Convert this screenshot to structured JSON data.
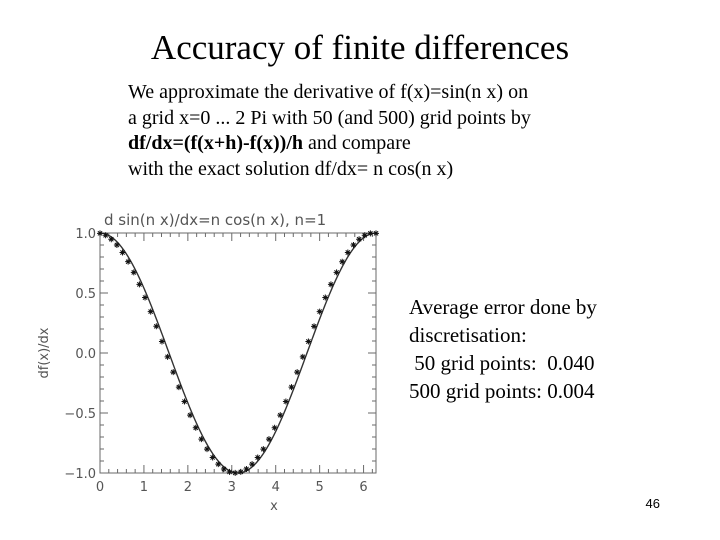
{
  "slide": {
    "title": "Accuracy of finite differences",
    "intro_lines": [
      "We approximate the derivative of f(x)=sin(n x) on",
      "a grid x=0 ... 2 Pi with 50 (and 500) grid points by"
    ],
    "formula_bold": "df/dx=(f(x+h)-f(x))/h",
    "formula_rest": " and compare",
    "intro_last": "with the exact solution df/dx= n cos(n x)",
    "side_note": {
      "heading": "Average error done by",
      "heading2": "discretisation:",
      "row50": " 50 grid points:  0.040",
      "row500": "500 grid points: 0.004"
    },
    "page_number": "46"
  },
  "chart_data": {
    "type": "line",
    "title": "d sin(n x)/dx=n cos(n x), n=1",
    "xlabel": "x",
    "ylabel": "df(x)/dx",
    "xlim": [
      0,
      6.283
    ],
    "ylim": [
      -1.0,
      1.0
    ],
    "x_ticks": [
      "0",
      "1",
      "2",
      "3",
      "4",
      "5",
      "6"
    ],
    "y_ticks": [
      "1.0",
      "0.5",
      "0.0",
      "−0.5",
      "−1.0"
    ],
    "grid": false,
    "series": [
      {
        "style": "line",
        "function": "n cos(n x)",
        "n": 1,
        "points": 500
      },
      {
        "style": "asterisk",
        "function": "(f(x+h)-f(x))/h",
        "n": 1,
        "points": 50
      }
    ]
  }
}
